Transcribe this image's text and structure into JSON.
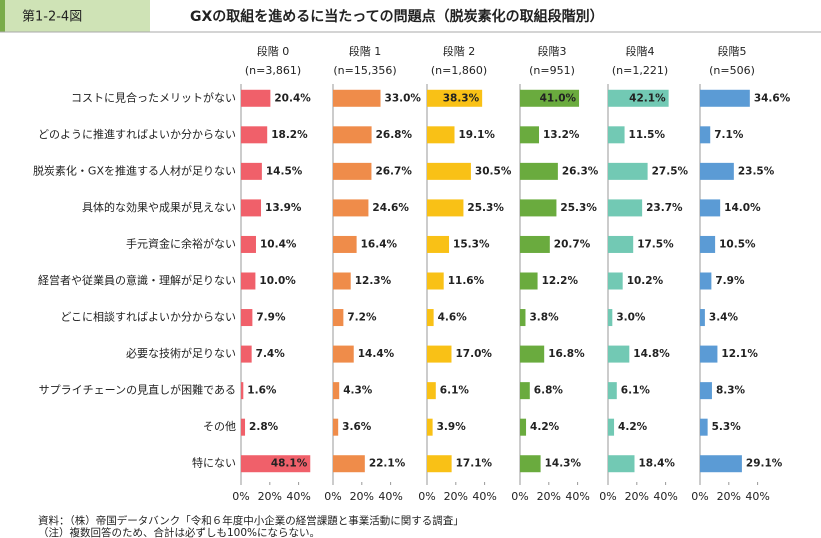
{
  "figure_number": "第1-2-4図",
  "chart_data": {
    "type": "bar",
    "orientation": "horizontal",
    "title": "GXの取組を進めるに当たっての問題点（脱炭素化の取組段階別）",
    "categories": [
      "コストに見合ったメリットがない",
      "どのように推進すればよいか分からない",
      "脱炭素化・GXを推進する人材が足りない",
      "具体的な効果や成果が見えない",
      "手元資金に余裕がない",
      "経営者や従業員の意識・理解が足りない",
      "どこに相談すればよいか分からない",
      "必要な技術が足りない",
      "サプライチェーンの見直しが困難である",
      "その他",
      "特にない"
    ],
    "xlim": [
      0,
      50
    ],
    "xticks": [
      {
        "value": 0,
        "label": "0%"
      },
      {
        "value": 20,
        "label": "20%"
      },
      {
        "value": 40,
        "label": "40%"
      }
    ],
    "series": [
      {
        "name": "段階 0",
        "n_label": "(n=3,861)",
        "color": "#f0606a",
        "values": [
          20.4,
          18.2,
          14.5,
          13.9,
          10.4,
          10.0,
          7.9,
          7.4,
          1.6,
          2.8,
          48.1
        ],
        "value_labels": [
          "20.4%",
          "18.2%",
          "14.5%",
          "13.9%",
          "10.4%",
          "10.0%",
          "7.9%",
          "7.4%",
          "1.6%",
          "2.8%",
          "48.1%"
        ]
      },
      {
        "name": "段階 1",
        "n_label": "(n=15,356)",
        "color": "#ef8c4a",
        "values": [
          33.0,
          26.8,
          26.7,
          24.6,
          16.4,
          12.3,
          7.2,
          14.4,
          4.3,
          3.6,
          22.1
        ],
        "value_labels": [
          "33.0%",
          "26.8%",
          "26.7%",
          "24.6%",
          "16.4%",
          "12.3%",
          "7.2%",
          "14.4%",
          "4.3%",
          "3.6%",
          "22.1%"
        ]
      },
      {
        "name": "段階 2",
        "n_label": "(n=1,860)",
        "color": "#f9c116",
        "values": [
          38.3,
          19.1,
          30.5,
          25.3,
          15.3,
          11.6,
          4.6,
          17.0,
          6.1,
          3.9,
          17.1
        ],
        "value_labels": [
          "38.3%",
          "19.1%",
          "30.5%",
          "25.3%",
          "15.3%",
          "11.6%",
          "4.6%",
          "17.0%",
          "6.1%",
          "3.9%",
          "17.1%"
        ]
      },
      {
        "name": "段階3",
        "n_label": "(n=951)",
        "color": "#6aab3e",
        "values": [
          41.0,
          13.2,
          26.3,
          25.3,
          20.7,
          12.2,
          3.8,
          16.8,
          6.8,
          4.2,
          14.3
        ],
        "value_labels": [
          "41.0%",
          "13.2%",
          "26.3%",
          "25.3%",
          "20.7%",
          "12.2%",
          "3.8%",
          "16.8%",
          "6.8%",
          "4.2%",
          "14.3%"
        ]
      },
      {
        "name": "段階4",
        "n_label": "(n=1,221)",
        "color": "#72c9b4",
        "values": [
          42.1,
          11.5,
          27.5,
          23.7,
          17.5,
          10.2,
          3.0,
          14.8,
          6.1,
          4.2,
          18.4
        ],
        "value_labels": [
          "42.1%",
          "11.5%",
          "27.5%",
          "23.7%",
          "17.5%",
          "10.2%",
          "3.0%",
          "14.8%",
          "6.1%",
          "4.2%",
          "18.4%"
        ]
      },
      {
        "name": "段階5",
        "n_label": "(n=506)",
        "color": "#5b9bd5",
        "values": [
          34.6,
          7.1,
          23.5,
          14.0,
          10.5,
          7.9,
          3.4,
          12.1,
          8.3,
          5.3,
          29.1
        ],
        "value_labels": [
          "34.6%",
          "7.1%",
          "23.5%",
          "14.0%",
          "10.5%",
          "7.9%",
          "3.4%",
          "12.1%",
          "8.3%",
          "5.3%",
          "29.1%"
        ]
      }
    ]
  },
  "footer": {
    "source": "資料：（株）帝国データバンク「令和６年度中小企業の経営課題と事業活動に関する調査」",
    "note": "（注）複数回答のため、合計は必ずしも100%にならない。"
  }
}
